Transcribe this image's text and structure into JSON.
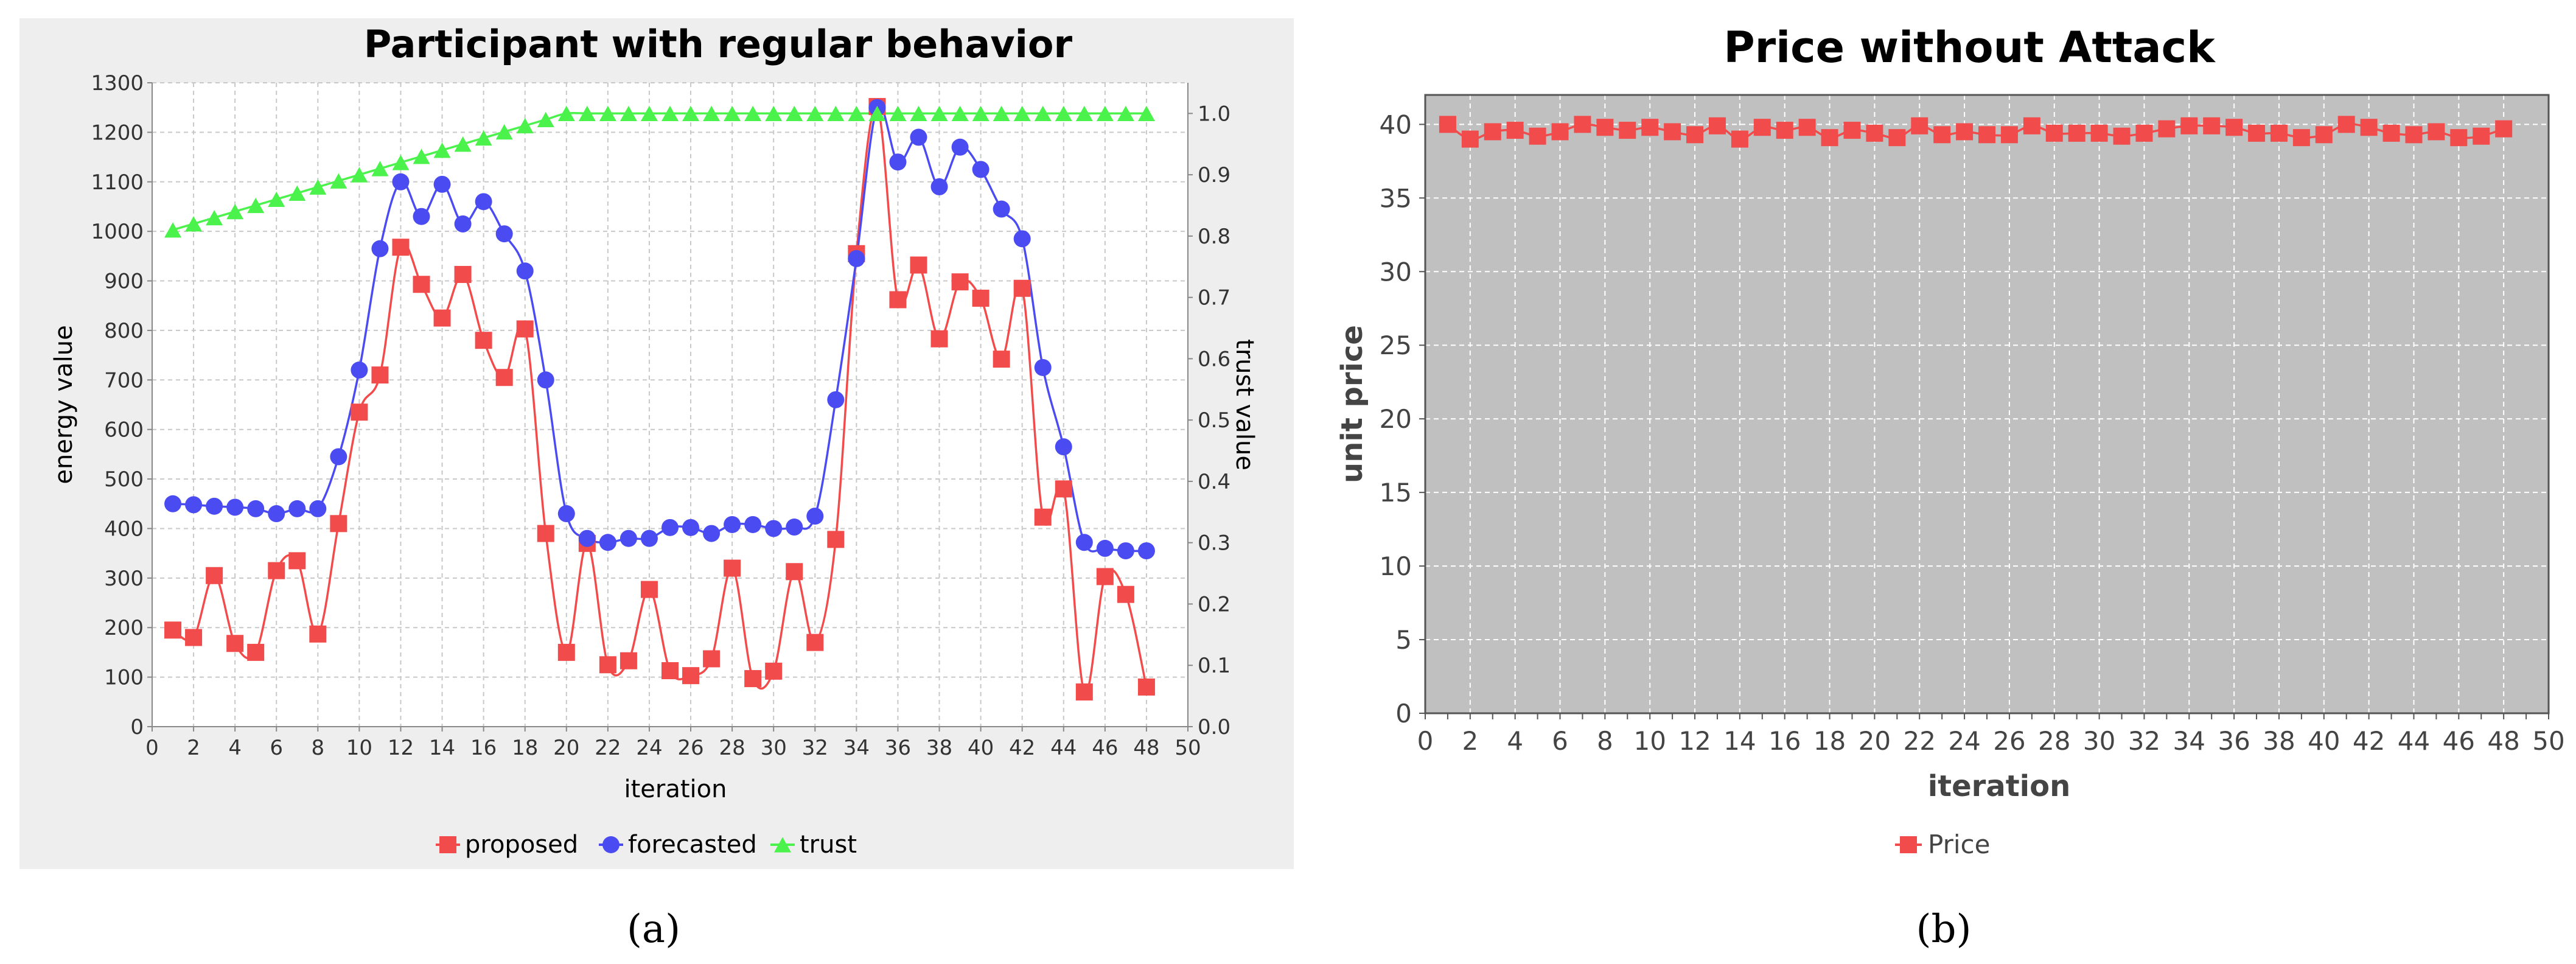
{
  "colors": {
    "proposed": "#f24b4b",
    "forecasted": "#4b4bf2",
    "trust": "#4bf24b",
    "price": "#f24b4b",
    "panel_a_bg": "#eeeeee",
    "panel_b_plot_bg": "#c0c0c0",
    "grid": "#c8c8c8"
  },
  "chart_data": [
    {
      "type": "line",
      "panel": "a",
      "title": "Participant with regular behavior",
      "xlabel": "iteration",
      "ylabel": "energy value",
      "y2label": "trust value",
      "xlim": [
        0,
        50
      ],
      "ylim": [
        0,
        1300
      ],
      "y2lim": [
        0,
        1.05
      ],
      "xticks": [
        0,
        2,
        4,
        6,
        8,
        10,
        12,
        14,
        16,
        18,
        20,
        22,
        24,
        26,
        28,
        30,
        32,
        34,
        36,
        38,
        40,
        42,
        44,
        46,
        48,
        50
      ],
      "yticks": [
        0,
        100,
        200,
        300,
        400,
        500,
        600,
        700,
        800,
        900,
        1000,
        1100,
        1200,
        1300
      ],
      "y2ticks": [
        0.0,
        0.1,
        0.2,
        0.3,
        0.4,
        0.5,
        0.6,
        0.7,
        0.8,
        0.9,
        1.0
      ],
      "x": [
        1,
        2,
        3,
        4,
        5,
        6,
        7,
        8,
        9,
        10,
        11,
        12,
        13,
        14,
        15,
        16,
        17,
        18,
        19,
        20,
        21,
        22,
        23,
        24,
        25,
        26,
        27,
        28,
        29,
        30,
        31,
        32,
        33,
        34,
        35,
        36,
        37,
        38,
        39,
        40,
        41,
        42,
        43,
        44,
        45,
        46,
        47,
        48
      ],
      "series": [
        {
          "name": "proposed",
          "axis": "left",
          "marker": "square",
          "values": [
            195,
            180,
            305,
            168,
            150,
            315,
            335,
            187,
            410,
            635,
            710,
            968,
            893,
            825,
            913,
            780,
            705,
            803,
            390,
            150,
            370,
            125,
            133,
            277,
            113,
            103,
            137,
            320,
            97,
            112,
            313,
            170,
            378,
            955,
            1252,
            862,
            932,
            783,
            898,
            865,
            742,
            885,
            423,
            480,
            70,
            303,
            267,
            80
          ]
        },
        {
          "name": "forecasted",
          "axis": "left",
          "marker": "circle",
          "values": [
            450,
            448,
            445,
            443,
            440,
            430,
            440,
            440,
            545,
            720,
            965,
            1100,
            1030,
            1095,
            1015,
            1060,
            995,
            920,
            700,
            430,
            380,
            372,
            380,
            380,
            402,
            402,
            390,
            408,
            408,
            400,
            403,
            425,
            660,
            945,
            1250,
            1140,
            1190,
            1090,
            1170,
            1125,
            1045,
            985,
            725,
            565,
            372,
            360,
            355,
            355
          ]
        },
        {
          "name": "trust",
          "axis": "right",
          "marker": "triangle",
          "values": [
            0.81,
            0.82,
            0.83,
            0.84,
            0.85,
            0.86,
            0.87,
            0.88,
            0.89,
            0.9,
            0.91,
            0.92,
            0.93,
            0.94,
            0.95,
            0.96,
            0.97,
            0.98,
            0.99,
            1.0,
            1.0,
            1.0,
            1.0,
            1.0,
            1.0,
            1.0,
            1.0,
            1.0,
            1.0,
            1.0,
            1.0,
            1.0,
            1.0,
            1.0,
            1.0,
            1.0,
            1.0,
            1.0,
            1.0,
            1.0,
            1.0,
            1.0,
            1.0,
            1.0,
            1.0,
            1.0,
            1.0,
            1.0
          ]
        }
      ],
      "legend": [
        "proposed",
        "forecasted",
        "trust"
      ],
      "legend_position": "bottom-center",
      "grid": true,
      "caption": "(a)"
    },
    {
      "type": "line",
      "panel": "b",
      "title": "Price without Attack",
      "xlabel": "iteration",
      "ylabel": "unit price",
      "xlim": [
        0,
        50
      ],
      "ylim": [
        0,
        42
      ],
      "xticks": [
        0,
        1,
        2,
        3,
        4,
        5,
        6,
        7,
        8,
        9,
        10,
        11,
        12,
        13,
        14,
        15,
        16,
        17,
        18,
        19,
        20,
        21,
        22,
        23,
        24,
        25,
        26,
        27,
        28,
        29,
        30,
        31,
        32,
        33,
        34,
        35,
        36,
        37,
        38,
        39,
        40,
        41,
        42,
        43,
        44,
        45,
        46,
        47,
        48,
        49,
        50
      ],
      "xticklabels": [
        0,
        2,
        4,
        6,
        8,
        10,
        12,
        14,
        16,
        18,
        20,
        22,
        24,
        26,
        28,
        30,
        32,
        34,
        36,
        38,
        40,
        42,
        44,
        46,
        48,
        50
      ],
      "yticks": [
        0,
        5,
        10,
        15,
        20,
        25,
        30,
        35,
        40
      ],
      "x": [
        1,
        2,
        3,
        4,
        5,
        6,
        7,
        8,
        9,
        10,
        11,
        12,
        13,
        14,
        15,
        16,
        17,
        18,
        19,
        20,
        21,
        22,
        23,
        24,
        25,
        26,
        27,
        28,
        29,
        30,
        31,
        32,
        33,
        34,
        35,
        36,
        37,
        38,
        39,
        40,
        41,
        42,
        43,
        44,
        45,
        46,
        47,
        48
      ],
      "series": [
        {
          "name": "Price",
          "marker": "square",
          "values": [
            40.0,
            39.0,
            39.5,
            39.6,
            39.2,
            39.5,
            40.0,
            39.8,
            39.6,
            39.8,
            39.5,
            39.3,
            39.9,
            39.0,
            39.8,
            39.6,
            39.8,
            39.1,
            39.6,
            39.4,
            39.1,
            39.9,
            39.3,
            39.5,
            39.3,
            39.3,
            39.9,
            39.4,
            39.4,
            39.4,
            39.2,
            39.4,
            39.7,
            39.9,
            39.9,
            39.8,
            39.4,
            39.4,
            39.1,
            39.3,
            40.0,
            39.8,
            39.4,
            39.3,
            39.5,
            39.1,
            39.2,
            39.7
          ]
        }
      ],
      "legend": [
        "Price"
      ],
      "legend_position": "bottom-center",
      "grid": true,
      "caption": "(b)"
    }
  ]
}
